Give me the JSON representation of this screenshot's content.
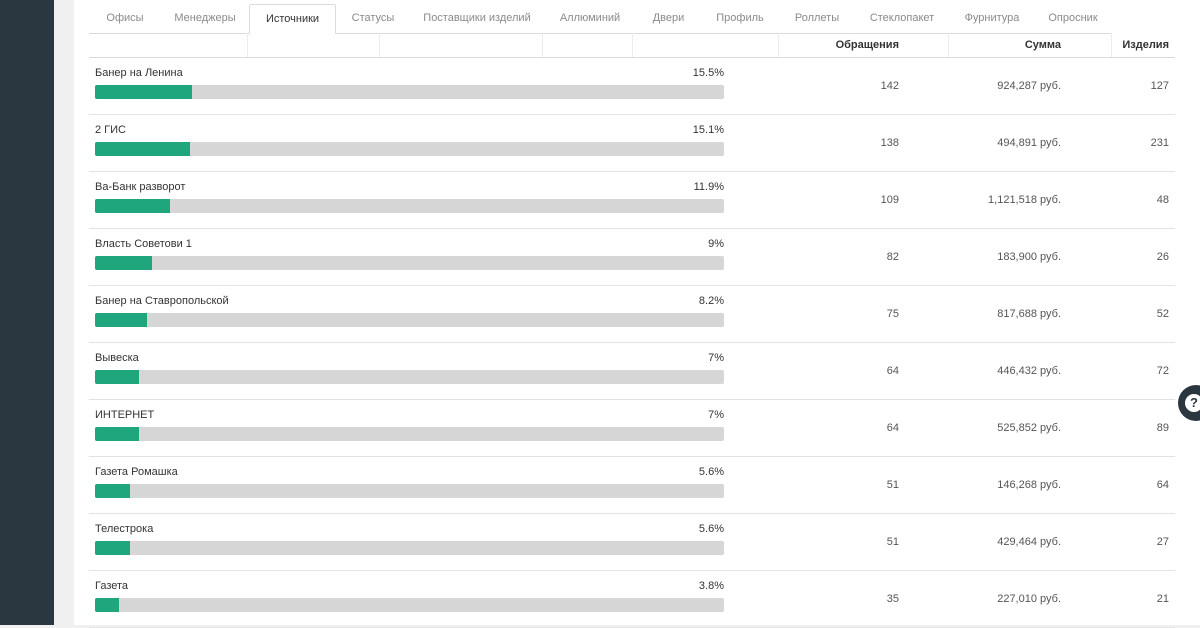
{
  "tabs": [
    {
      "label": "Офисы",
      "active": false
    },
    {
      "label": "Менеджеры",
      "active": false
    },
    {
      "label": "Источники",
      "active": true
    },
    {
      "label": "Статусы",
      "active": false
    },
    {
      "label": "Поставщики изделий",
      "active": false
    },
    {
      "label": "Аллюминий",
      "active": false
    },
    {
      "label": "Двери",
      "active": false
    },
    {
      "label": "Профиль",
      "active": false
    },
    {
      "label": "Роллеты",
      "active": false
    },
    {
      "label": "Стеклопакет",
      "active": false
    },
    {
      "label": "Фурнитура",
      "active": false
    },
    {
      "label": "Опросник",
      "active": false
    }
  ],
  "table": {
    "headers": {
      "requests": "Обращения",
      "sum": "Сумма",
      "items": "Изделия"
    },
    "rows": [
      {
        "name": "Банер на Ленина",
        "percent_label": "15.5%",
        "percent": 15.5,
        "requests": "142",
        "sum": "924,287 руб.",
        "items": "127"
      },
      {
        "name": "2 ГИС",
        "percent_label": "15.1%",
        "percent": 15.1,
        "requests": "138",
        "sum": "494,891 руб.",
        "items": "231"
      },
      {
        "name": "Ва-Банк разворот",
        "percent_label": "11.9%",
        "percent": 11.9,
        "requests": "109",
        "sum": "1,121,518 руб.",
        "items": "48"
      },
      {
        "name": "Власть Советови 1",
        "percent_label": "9%",
        "percent": 9,
        "requests": "82",
        "sum": "183,900 руб.",
        "items": "26"
      },
      {
        "name": "Банер на Ставропольской",
        "percent_label": "8.2%",
        "percent": 8.2,
        "requests": "75",
        "sum": "817,688 руб.",
        "items": "52"
      },
      {
        "name": "Вывеска",
        "percent_label": "7%",
        "percent": 7,
        "requests": "64",
        "sum": "446,432 руб.",
        "items": "72"
      },
      {
        "name": "ИНТЕРНЕТ",
        "percent_label": "7%",
        "percent": 7,
        "requests": "64",
        "sum": "525,852 руб.",
        "items": "89"
      },
      {
        "name": "Газета Ромашка",
        "percent_label": "5.6%",
        "percent": 5.6,
        "requests": "51",
        "sum": "146,268 руб.",
        "items": "64"
      },
      {
        "name": "Телестрока",
        "percent_label": "5.6%",
        "percent": 5.6,
        "requests": "51",
        "sum": "429,464 руб.",
        "items": "27"
      },
      {
        "name": "Газета",
        "percent_label": "3.8%",
        "percent": 3.8,
        "requests": "35",
        "sum": "227,010 руб.",
        "items": "21"
      }
    ]
  },
  "help_button": {
    "icon": "question-circle-icon",
    "glyph": "?"
  },
  "colors": {
    "bar_fill": "#1fa67d",
    "bar_track": "#d6d6d6",
    "sidebar": "#2b3740"
  }
}
